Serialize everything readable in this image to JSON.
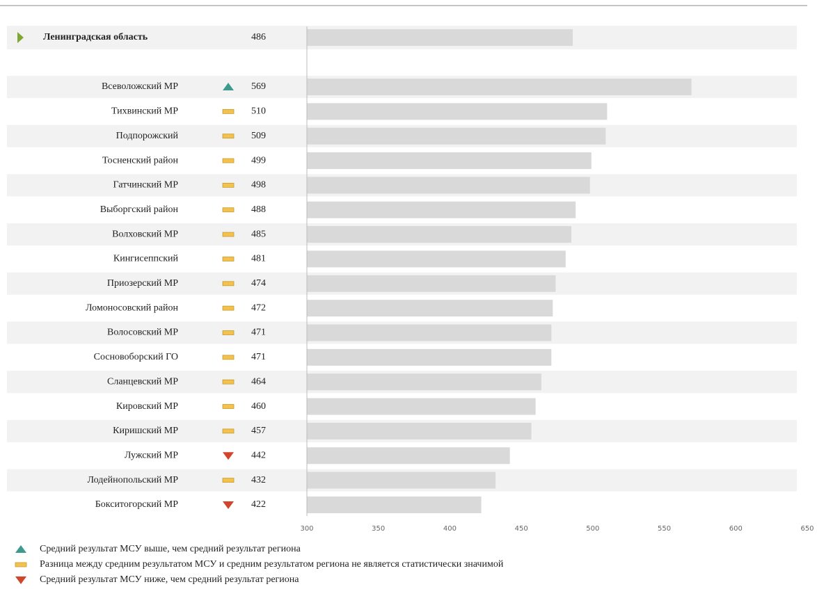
{
  "chart_data": {
    "type": "bar",
    "reference": {
      "name": "Ленинградская область",
      "value": 486,
      "color": "#7fa832"
    },
    "categories": [
      "Всеволожский  МР",
      "Тихвинский МР",
      "Подпорожский",
      "Тосненский район",
      "Гатчинский МР",
      "Выборгский район",
      "Волховский МР",
      "Кингисеппский",
      "Приозерский МР",
      "Ломоносовский район",
      "Волосовский МР",
      "Сосновоборский ГО",
      "Сланцевский МР",
      "Кировский МР",
      "Киришский МР",
      "Лужский МР",
      "Лодейнопольский МР",
      "Бокситогорский МР"
    ],
    "values": [
      569,
      510,
      509,
      499,
      498,
      488,
      485,
      481,
      474,
      472,
      471,
      471,
      464,
      460,
      457,
      442,
      432,
      422
    ],
    "status": [
      "up",
      "same",
      "same",
      "same",
      "same",
      "same",
      "same",
      "same",
      "same",
      "same",
      "same",
      "same",
      "same",
      "same",
      "same",
      "down",
      "same",
      "down"
    ],
    "color": "#d9d9d9",
    "marker_colors": {
      "up": "#3f9a8c",
      "same": "#f2c14e",
      "down": "#d2452b"
    },
    "xlim": [
      300,
      650
    ],
    "xticks": [
      300,
      350,
      400,
      450,
      500,
      550,
      600,
      650
    ],
    "legend": [
      {
        "marker": "up",
        "label": "Средний результат МСУ выше, чем средний результат региона"
      },
      {
        "marker": "same",
        "label": "Разница между средним результатом МСУ и средним результатом региона не является статистически значимой"
      },
      {
        "marker": "down",
        "label": "Средний результат МСУ ниже, чем средний результат региона"
      }
    ]
  }
}
